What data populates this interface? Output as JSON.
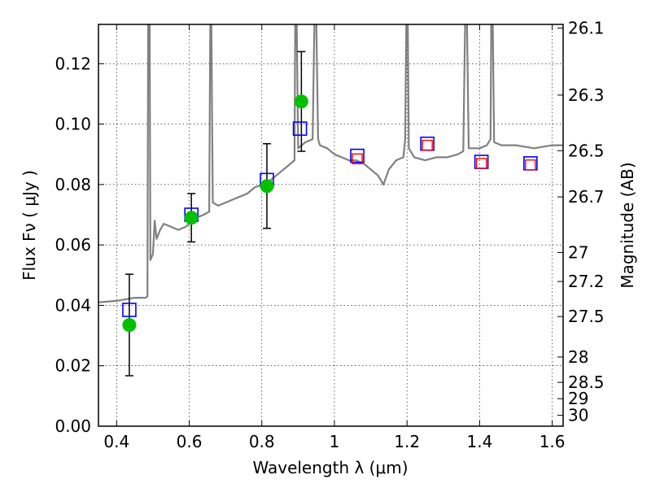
{
  "chart_data": {
    "type": "scatter",
    "xlabel": "Wavelength  λ (μm)",
    "ylabel": "Flux  Fν  ( μJy )",
    "ylabel_right": "Magnitude (AB)",
    "xlim": [
      0.35,
      1.63
    ],
    "ylim": [
      0.0,
      0.133
    ],
    "grid": true,
    "x_ticks": [
      0.4,
      0.6,
      0.8,
      1.0,
      1.2,
      1.4,
      1.6
    ],
    "x_tick_labels": [
      "0.4",
      "0.6",
      "0.8",
      "1",
      "1.2",
      "1.4",
      "1.6"
    ],
    "y_ticks": [
      0.0,
      0.02,
      0.04,
      0.06,
      0.08,
      0.1,
      0.12
    ],
    "y_tick_labels": [
      "0.00",
      "0.02",
      "0.04",
      "0.06",
      "0.08",
      "0.10",
      "0.12"
    ],
    "right_ticks": [
      {
        "label": "26.1",
        "flux": 0.1318
      },
      {
        "label": "26.3",
        "flux": 0.1096
      },
      {
        "label": "26.5",
        "flux": 0.0912
      },
      {
        "label": "26.7",
        "flux": 0.0759
      },
      {
        "label": "27",
        "flux": 0.0575
      },
      {
        "label": "27.2",
        "flux": 0.0479
      },
      {
        "label": "27.5",
        "flux": 0.0363
      },
      {
        "label": "28",
        "flux": 0.0229
      },
      {
        "label": "28.5",
        "flux": 0.0145
      },
      {
        "label": "29",
        "flux": 0.0091
      },
      {
        "label": "30",
        "flux": 0.0036
      }
    ],
    "series": [
      {
        "name": "model spectrum",
        "kind": "line",
        "color": "#808080",
        "points": [
          [
            0.35,
            0.041
          ],
          [
            0.4,
            0.0415
          ],
          [
            0.45,
            0.0425
          ],
          [
            0.48,
            0.0425
          ],
          [
            0.485,
            0.043
          ],
          [
            0.487,
            0.134
          ],
          [
            0.491,
            0.134
          ],
          [
            0.493,
            0.055
          ],
          [
            0.5,
            0.057
          ],
          [
            0.505,
            0.068
          ],
          [
            0.51,
            0.062
          ],
          [
            0.52,
            0.065
          ],
          [
            0.53,
            0.067
          ],
          [
            0.55,
            0.066
          ],
          [
            0.57,
            0.065
          ],
          [
            0.59,
            0.066
          ],
          [
            0.62,
            0.069
          ],
          [
            0.64,
            0.07
          ],
          [
            0.655,
            0.071
          ],
          [
            0.658,
            0.134
          ],
          [
            0.661,
            0.134
          ],
          [
            0.665,
            0.074
          ],
          [
            0.68,
            0.073
          ],
          [
            0.7,
            0.074
          ],
          [
            0.72,
            0.075
          ],
          [
            0.74,
            0.076
          ],
          [
            0.76,
            0.077
          ],
          [
            0.78,
            0.079
          ],
          [
            0.8,
            0.08
          ],
          [
            0.82,
            0.081
          ],
          [
            0.84,
            0.083
          ],
          [
            0.86,
            0.085
          ],
          [
            0.88,
            0.087
          ],
          [
            0.89,
            0.088
          ],
          [
            0.892,
            0.134
          ],
          [
            0.896,
            0.134
          ],
          [
            0.9,
            0.092
          ],
          [
            0.92,
            0.094
          ],
          [
            0.94,
            0.095
          ],
          [
            0.945,
            0.134
          ],
          [
            0.95,
            0.134
          ],
          [
            0.955,
            0.095
          ],
          [
            0.96,
            0.093
          ],
          [
            0.98,
            0.092
          ],
          [
            1.0,
            0.09
          ],
          [
            1.02,
            0.089
          ],
          [
            1.04,
            0.088
          ],
          [
            1.06,
            0.088
          ],
          [
            1.08,
            0.087
          ],
          [
            1.1,
            0.085
          ],
          [
            1.12,
            0.083
          ],
          [
            1.135,
            0.08
          ],
          [
            1.15,
            0.085
          ],
          [
            1.17,
            0.088
          ],
          [
            1.19,
            0.089
          ],
          [
            1.195,
            0.095
          ],
          [
            1.198,
            0.134
          ],
          [
            1.202,
            0.134
          ],
          [
            1.205,
            0.092
          ],
          [
            1.22,
            0.089
          ],
          [
            1.25,
            0.088
          ],
          [
            1.28,
            0.089
          ],
          [
            1.31,
            0.089
          ],
          [
            1.34,
            0.09
          ],
          [
            1.355,
            0.091
          ],
          [
            1.36,
            0.134
          ],
          [
            1.365,
            0.134
          ],
          [
            1.37,
            0.092
          ],
          [
            1.4,
            0.092
          ],
          [
            1.42,
            0.093
          ],
          [
            1.43,
            0.095
          ],
          [
            1.432,
            0.134
          ],
          [
            1.436,
            0.134
          ],
          [
            1.44,
            0.094
          ],
          [
            1.46,
            0.093
          ],
          [
            1.5,
            0.093
          ],
          [
            1.55,
            0.092
          ],
          [
            1.6,
            0.093
          ],
          [
            1.63,
            0.093
          ]
        ]
      },
      {
        "name": "model photometry",
        "kind": "square",
        "color": "#0000ff",
        "x": [
          0.435,
          0.606,
          0.814,
          0.905,
          1.063,
          1.256,
          1.405,
          1.54
        ],
        "y": [
          0.0385,
          0.07,
          0.0815,
          0.0985,
          0.0895,
          0.0935,
          0.0875,
          0.087
        ]
      },
      {
        "name": "measured photometry",
        "kind": "circle",
        "color": "#00c000",
        "x": [
          0.435,
          0.606,
          0.814,
          0.909
        ],
        "y": [
          0.0335,
          0.069,
          0.0795,
          0.1075
        ],
        "err": [
          0.0168,
          0.008,
          0.014,
          0.0165
        ]
      },
      {
        "name": "upper limits",
        "kind": "square",
        "color": "#ff0000",
        "x": [
          1.063,
          1.256,
          1.405,
          1.54
        ],
        "y": [
          0.0885,
          0.093,
          0.087,
          0.0865
        ]
      }
    ]
  }
}
